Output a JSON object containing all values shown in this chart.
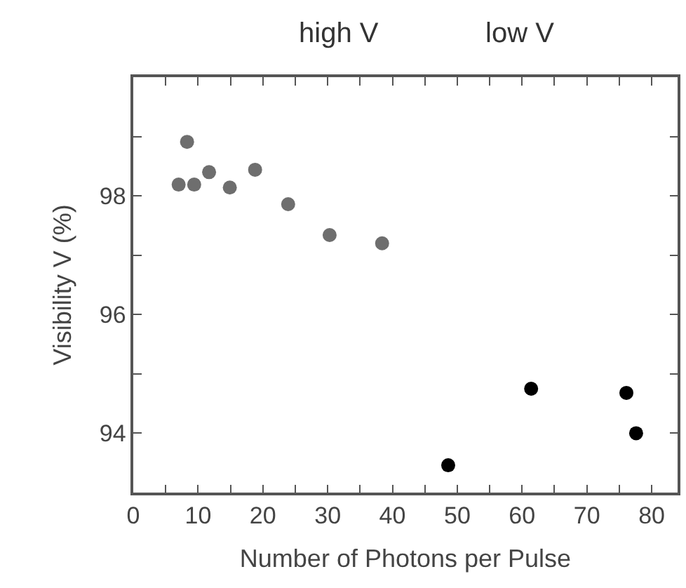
{
  "chart_data": {
    "type": "scatter",
    "xlabel": "Number of Photons per Pulse",
    "ylabel": "Visibility V (%)",
    "annotations": [
      "high V",
      "low V"
    ],
    "series": [
      {
        "color": "#6e6e6e",
        "x": [
          8.3,
          7.0,
          9.4,
          11.7,
          14.9,
          18.8,
          23.9,
          30.3,
          38.4
        ],
        "values": [
          98.91,
          98.19,
          98.19,
          98.4,
          98.14,
          98.44,
          97.86,
          97.34,
          97.2
        ]
      },
      {
        "color": "#000000",
        "x": [
          48.6,
          61.4,
          76.1,
          77.6
        ],
        "values": [
          93.46,
          94.75,
          94.68,
          94.0
        ]
      }
    ],
    "marker": "circle",
    "xlim": [
      0,
      84
    ],
    "ylim": [
      93,
      100
    ],
    "xticks": [
      0,
      {
        "value": 5,
        "label": null
      },
      10,
      {
        "value": 15,
        "label": null
      },
      20,
      {
        "value": 25,
        "label": null
      },
      30,
      {
        "value": 35,
        "label": null
      },
      40,
      {
        "value": 45,
        "label": null
      },
      50,
      {
        "value": 55,
        "label": null
      },
      60,
      {
        "value": 65,
        "label": null
      },
      70,
      {
        "value": 75,
        "label": null
      },
      80
    ],
    "yticks": [
      {
        "value": 93,
        "label": null
      },
      94,
      {
        "value": 95,
        "label": null
      },
      96,
      {
        "value": 97,
        "label": null
      },
      98,
      {
        "value": 99,
        "label": null
      },
      {
        "value": 100,
        "label": null
      }
    ]
  }
}
